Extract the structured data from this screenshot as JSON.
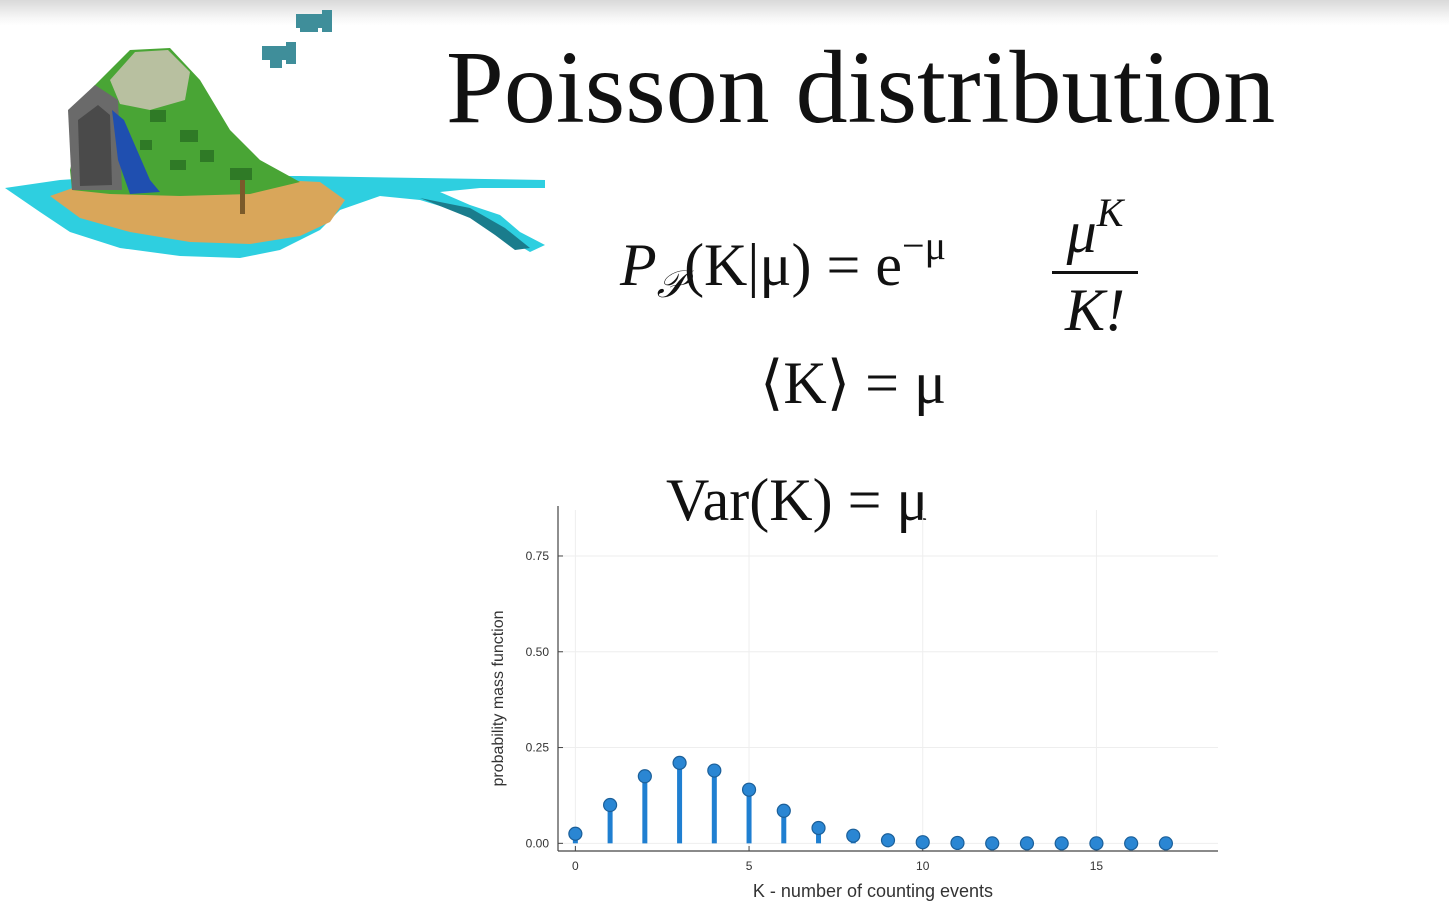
{
  "slide": {
    "title": "Poisson distribution",
    "formula_lhs_P": "P",
    "formula_lhs_sub": "𝒫",
    "formula_lhs_args": "(K|μ) = e",
    "formula_lhs_exp": "−μ",
    "formula_num": "μ",
    "formula_num_exp": "K",
    "formula_den": "K!",
    "mean_formula": "⟨K⟩ = μ",
    "var_formula": "Var(K) = μ"
  },
  "icons": {
    "illustration": "pixel-island-icon",
    "fish": "fish-icon"
  },
  "colors": {
    "marker": "#2a86d3",
    "stem": "#1f7fd1",
    "axis": "#444444",
    "grid": "#eeeeee"
  },
  "chart_data": {
    "type": "scatter",
    "style": "stem",
    "xlabel": "K - number of counting events",
    "ylabel": "probability mass function",
    "xticks": [
      0,
      5,
      10,
      15
    ],
    "xtick_labels": [
      "0",
      "5",
      "10",
      "15"
    ],
    "yticks": [
      0.0,
      0.25,
      0.5,
      0.75
    ],
    "ytick_labels": [
      "0.00",
      "0.25",
      "0.50",
      "0.75"
    ],
    "xlim": [
      -0.5,
      18.5
    ],
    "ylim": [
      -0.02,
      0.87
    ],
    "grid": true,
    "legend": false,
    "x": [
      0,
      1,
      2,
      3,
      4,
      5,
      6,
      7,
      8,
      9,
      10,
      11,
      12,
      13,
      14,
      15,
      16,
      17
    ],
    "y": [
      0.025,
      0.1,
      0.175,
      0.21,
      0.19,
      0.14,
      0.085,
      0.04,
      0.02,
      0.008,
      0.003,
      0.001,
      0.0,
      0.0,
      0.0,
      0.0,
      0.0,
      0.0
    ]
  }
}
